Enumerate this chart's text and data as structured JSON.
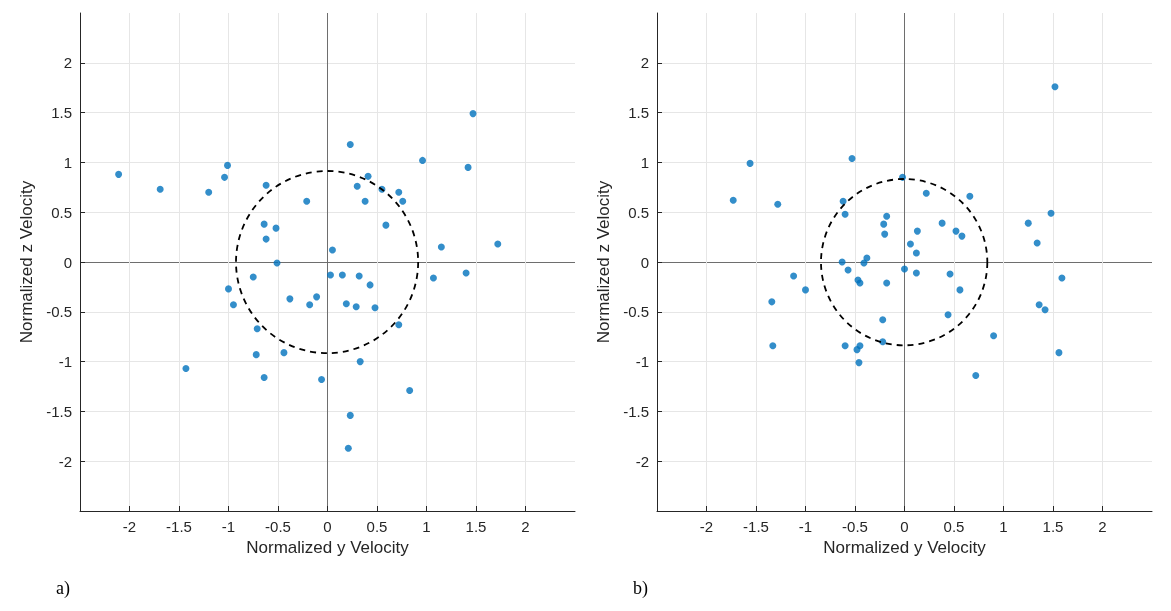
{
  "chart_data": [
    {
      "type": "scatter",
      "xlabel": "Normalized y Velocity",
      "ylabel": "Normalized z Velocity",
      "xlim": [
        -2.5,
        2.5
      ],
      "ylim": [
        -2.5,
        2.5
      ],
      "xticks": [
        -2,
        -1.5,
        -1,
        -0.5,
        0,
        0.5,
        1,
        1.5,
        2
      ],
      "yticks": [
        -2,
        -1.5,
        -1,
        -0.5,
        0,
        0.5,
        1,
        1.5,
        2
      ],
      "grid": true,
      "marker": "circle",
      "annotations": [
        "a)"
      ],
      "series": [
        {
          "color": "#0072bd",
          "x": [
            -2.11,
            -1.69,
            -1.2,
            -1.01,
            -1.04,
            -0.62,
            -0.21,
            0.23,
            0.41,
            0.3,
            0.38,
            0.55,
            0.72,
            0.76,
            0.59,
            0.96,
            1.42,
            1.47,
            1.15,
            1.72,
            0.05,
            -0.64,
            -0.52,
            -0.62,
            -0.51,
            -0.75,
            -1.0,
            -0.95,
            -0.38,
            -0.18,
            -0.11,
            0.03,
            0.15,
            0.32,
            0.43,
            0.19,
            0.29,
            0.48,
            1.07,
            1.4,
            0.72,
            -0.71,
            -0.72,
            -0.44,
            0.33,
            -1.43,
            -0.64,
            -0.06,
            0.83,
            0.23,
            0.21
          ],
          "values": [
            0.88,
            0.73,
            0.7,
            0.97,
            0.85,
            0.77,
            0.61,
            1.18,
            0.86,
            0.76,
            0.61,
            0.73,
            0.7,
            0.61,
            0.37,
            1.02,
            0.95,
            1.49,
            0.15,
            0.18,
            0.12,
            0.38,
            0.34,
            0.23,
            -0.01,
            -0.15,
            -0.27,
            -0.43,
            -0.37,
            -0.43,
            -0.35,
            -0.13,
            -0.13,
            -0.14,
            -0.23,
            -0.42,
            -0.45,
            -0.46,
            -0.16,
            -0.11,
            -0.63,
            -0.67,
            -0.93,
            -0.91,
            -1.0,
            -1.07,
            -1.16,
            -1.18,
            -1.29,
            -1.54,
            -1.87
          ]
        }
      ]
    },
    {
      "type": "scatter",
      "xlabel": "Normalized y Velocity",
      "ylabel": "Normalized z Velocity",
      "xlim": [
        -2.5,
        2.5
      ],
      "ylim": [
        -2.5,
        2.5
      ],
      "xticks": [
        -2,
        -1.5,
        -1,
        -0.5,
        0,
        0.5,
        1,
        1.5,
        2
      ],
      "yticks": [
        -2,
        -1.5,
        -1,
        -0.5,
        0,
        0.5,
        1,
        1.5,
        2
      ],
      "grid": true,
      "marker": "circle",
      "annotations": [
        "b)"
      ],
      "series": [
        {
          "color": "#0072bd",
          "x": [
            1.52,
            -1.56,
            -0.53,
            -1.73,
            -1.28,
            -0.02,
            0.22,
            0.66,
            -0.62,
            -0.6,
            -0.18,
            -0.21,
            -0.2,
            0.13,
            0.38,
            0.52,
            0.58,
            0.06,
            0.12,
            1.48,
            1.25,
            1.34,
            -0.63,
            -0.38,
            -0.41,
            -0.57,
            0.0,
            -1.12,
            -1.0,
            -1.34,
            -0.47,
            -0.45,
            -0.18,
            0.12,
            0.46,
            0.56,
            1.59,
            1.36,
            1.42,
            -0.22,
            0.44,
            0.9,
            -1.33,
            -0.6,
            -0.22,
            -0.45,
            -0.48,
            -0.46,
            1.56,
            0.72
          ],
          "values": [
            1.76,
            0.99,
            1.04,
            0.62,
            0.58,
            0.85,
            0.69,
            0.66,
            0.61,
            0.48,
            0.46,
            0.38,
            0.28,
            0.31,
            0.39,
            0.31,
            0.26,
            0.18,
            0.09,
            0.49,
            0.39,
            0.19,
            0.0,
            0.04,
            -0.01,
            -0.08,
            -0.07,
            -0.14,
            -0.28,
            -0.4,
            -0.18,
            -0.21,
            -0.21,
            -0.11,
            -0.12,
            -0.28,
            -0.16,
            -0.43,
            -0.48,
            -0.58,
            -0.53,
            -0.74,
            -0.84,
            -0.84,
            -0.8,
            -0.84,
            -0.88,
            -1.01,
            -0.91,
            -1.14
          ]
        }
      ]
    }
  ]
}
